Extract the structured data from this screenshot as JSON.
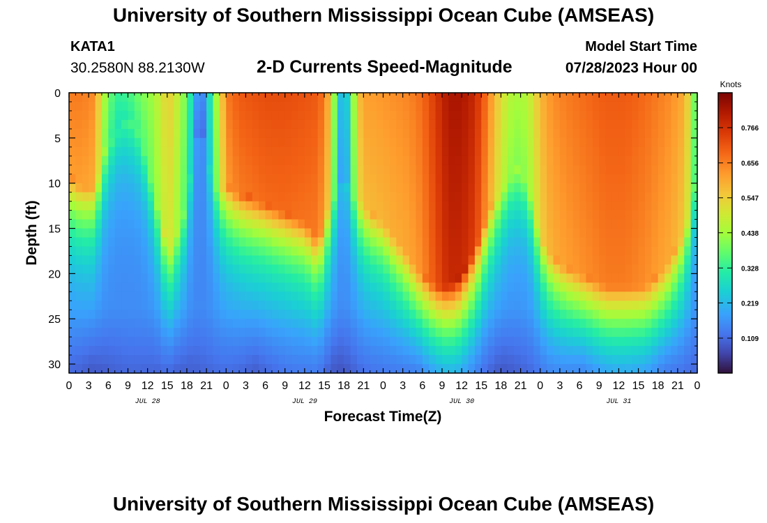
{
  "header": {
    "title": "University of Southern Mississippi Ocean Cube (AMSEAS)",
    "station_id": "KATA1",
    "coords": "30.2580N  88.2130W",
    "plot_title": "2-D Currents Speed-Magnitude",
    "model_start_label": "Model Start Time",
    "model_start_value": "07/28/2023 Hour 00"
  },
  "footer": {
    "title": "University of Southern Mississippi Ocean Cube (AMSEAS)"
  },
  "chart_data": {
    "type": "heatmap",
    "title": "2-D Currents Speed-Magnitude",
    "xlabel": "Forecast Time(Z)",
    "ylabel": "Depth (ft)",
    "x_range_hours": [
      0,
      96
    ],
    "y_range_ft": [
      0,
      31
    ],
    "x_tick_labels": [
      "0",
      "3",
      "6",
      "9",
      "12",
      "15",
      "18",
      "21",
      "0",
      "3",
      "6",
      "9",
      "12",
      "15",
      "18",
      "21",
      "0",
      "3",
      "6",
      "9",
      "12",
      "15",
      "18",
      "21",
      "0",
      "3",
      "6",
      "9",
      "12",
      "15",
      "18",
      "21",
      "0"
    ],
    "y_ticks": [
      0,
      5,
      10,
      15,
      20,
      25,
      30
    ],
    "y_tick_labels": [
      "0",
      "5",
      "10",
      "15",
      "20",
      "25",
      "30"
    ],
    "day_labels": [
      {
        "hour": 12,
        "label": "JUL 28"
      },
      {
        "hour": 36,
        "label": "JUL 29"
      },
      {
        "hour": 60,
        "label": "JUL 30"
      },
      {
        "hour": 84,
        "label": "JUL 31"
      }
    ],
    "colorbar": {
      "unit": "Knots",
      "range": [
        0,
        0.875
      ],
      "ticks": [
        0.109,
        0.219,
        0.328,
        0.438,
        0.547,
        0.656,
        0.766
      ],
      "tick_labels": [
        "0.109",
        "0.219",
        "0.328",
        "0.438",
        "0.547",
        "0.656",
        "0.766"
      ]
    },
    "speed_profile": {
      "description": "Approximate surface speed (knots) and depth (ft) of the fast layer versus forecast hour",
      "hours": [
        0,
        2,
        4,
        5,
        7,
        9,
        11,
        13,
        15,
        16,
        17,
        18,
        19,
        20,
        21,
        22,
        23,
        24,
        26,
        30,
        33,
        36,
        38,
        39,
        40,
        41,
        42,
        43,
        44,
        45,
        46,
        48,
        50,
        52,
        54,
        56,
        58,
        60,
        62,
        64,
        66,
        68,
        70,
        71,
        72,
        73,
        74,
        76,
        79,
        82,
        85,
        88,
        90,
        92,
        94,
        95,
        96
      ],
      "surface_kn": [
        0.66,
        0.66,
        0.64,
        0.48,
        0.33,
        0.34,
        0.4,
        0.44,
        0.55,
        0.52,
        0.45,
        0.38,
        0.24,
        0.12,
        0.2,
        0.38,
        0.5,
        0.66,
        0.7,
        0.72,
        0.72,
        0.71,
        0.7,
        0.66,
        0.56,
        0.28,
        0.18,
        0.32,
        0.55,
        0.62,
        0.62,
        0.63,
        0.64,
        0.65,
        0.68,
        0.75,
        0.82,
        0.82,
        0.78,
        0.66,
        0.52,
        0.44,
        0.46,
        0.52,
        0.58,
        0.62,
        0.64,
        0.66,
        0.68,
        0.7,
        0.7,
        0.68,
        0.66,
        0.64,
        0.6,
        0.5,
        0.3
      ],
      "layer_depth_ft": [
        9,
        10,
        10,
        7,
        4,
        3,
        4,
        10,
        17,
        16,
        14,
        12,
        6,
        3,
        6,
        9,
        10,
        10,
        11,
        12,
        13,
        14,
        16,
        14,
        11,
        10,
        10,
        10,
        11,
        12,
        13,
        14,
        16,
        18,
        20,
        21,
        21,
        20,
        17,
        13,
        10,
        8,
        9,
        12,
        15,
        17,
        18,
        19,
        20,
        21,
        21,
        21,
        20,
        18,
        15,
        12,
        8
      ]
    }
  }
}
